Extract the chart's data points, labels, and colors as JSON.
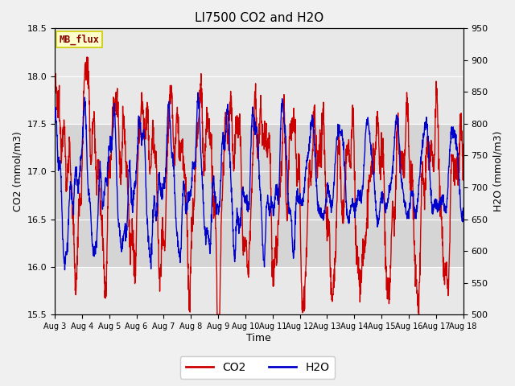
{
  "title": "LI7500 CO2 and H2O",
  "xlabel": "Time",
  "ylabel_left": "CO2 (mmol/m3)",
  "ylabel_right": "H2O (mmol/m3)",
  "xlim": [
    0,
    15
  ],
  "ylim_left": [
    15.5,
    18.5
  ],
  "ylim_right": [
    500,
    950
  ],
  "xtick_labels": [
    "Aug 3",
    "Aug 4",
    "Aug 5",
    "Aug 6",
    "Aug 7",
    "Aug 8",
    "Aug 9",
    "Aug 10",
    "Aug 11",
    "Aug 12",
    "Aug 13",
    "Aug 14",
    "Aug 15",
    "Aug 16",
    "Aug 17",
    "Aug 18"
  ],
  "xtick_positions": [
    0,
    1,
    2,
    3,
    4,
    5,
    6,
    7,
    8,
    9,
    10,
    11,
    12,
    13,
    14,
    15
  ],
  "yticks_left": [
    15.5,
    16.0,
    16.5,
    17.0,
    17.5,
    18.0,
    18.5
  ],
  "yticks_right": [
    500,
    550,
    600,
    650,
    700,
    750,
    800,
    850,
    900,
    950
  ],
  "co2_color": "#cc0000",
  "h2o_color": "#0000cc",
  "bg_color": "#f0f0f0",
  "plot_bg_color": "#e8e8e8",
  "grid_color": "#ffffff",
  "label_box_color": "#ffffcc",
  "label_box_edge": "#cccc00",
  "label_text": "MB_flux",
  "label_text_color": "#880000",
  "shaded_region_y1": 16.0,
  "shaded_region_y2": 17.5,
  "line_width": 1.0,
  "legend_co2": "CO2",
  "legend_h2o": "H2O"
}
